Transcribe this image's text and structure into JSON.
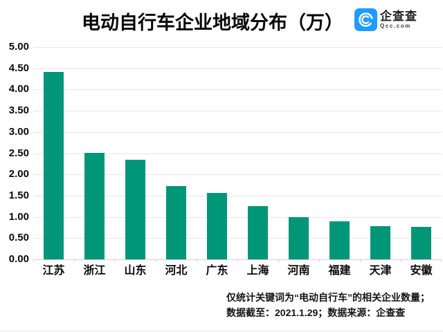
{
  "header": {
    "title": "电动自行车企业地域分布（万）",
    "logo": {
      "name": "企查查",
      "domain": "Qcc.com",
      "color": "#1e9cff"
    }
  },
  "chart_data": {
    "type": "bar",
    "title": "电动自行车企业地域分布（万）",
    "unit": "万",
    "categories": [
      "江苏",
      "浙江",
      "山东",
      "河北",
      "广东",
      "上海",
      "河南",
      "福建",
      "天津",
      "安徽"
    ],
    "values": [
      4.42,
      2.51,
      2.35,
      1.73,
      1.56,
      1.25,
      1.0,
      0.89,
      0.78,
      0.77
    ],
    "ylim": [
      0,
      5
    ],
    "ytick_step": 0.5,
    "ytick_labels": [
      "0.00",
      "0.50",
      "1.00",
      "1.50",
      "2.00",
      "2.50",
      "3.00",
      "3.50",
      "4.00",
      "4.50",
      "5.00"
    ],
    "grid": true,
    "legend": false,
    "bar_color": "#009678"
  },
  "footer": {
    "line1": "仅统计关键词为“电动自行车”的相关企业数量；",
    "line2": "数据截至：2021.1.29；数据来源：企查查"
  }
}
